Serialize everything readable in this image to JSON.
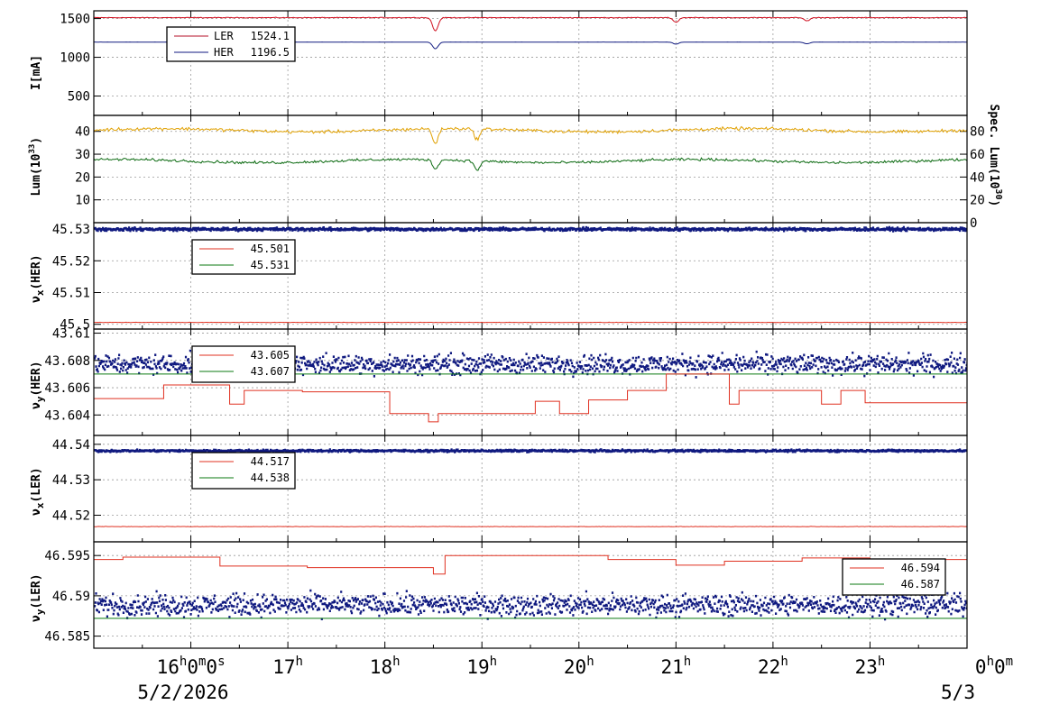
{
  "chart_data": {
    "type": "line",
    "x_axis": {
      "ticks": [
        {
          "x": 16,
          "label": "16",
          "sup": "h",
          "extra": "0",
          "extra_sup": "m",
          "extra2": "0",
          "extra2_sup": "s"
        },
        {
          "x": 17,
          "label": "17",
          "sup": "h"
        },
        {
          "x": 18,
          "label": "18",
          "sup": "h"
        },
        {
          "x": 19,
          "label": "19",
          "sup": "h"
        },
        {
          "x": 20,
          "label": "20",
          "sup": "h"
        },
        {
          "x": 21,
          "label": "21",
          "sup": "h"
        },
        {
          "x": 22,
          "label": "22",
          "sup": "h"
        },
        {
          "x": 23,
          "label": "23",
          "sup": "h"
        },
        {
          "x": 24,
          "label": "0",
          "sup": "h",
          "extra": "0",
          "extra_sup": "m"
        }
      ],
      "date_left": "5/2/2026",
      "date_right": "5/3",
      "range_hours": [
        15.0,
        24.0
      ]
    },
    "panels": [
      {
        "id": "current",
        "ylabel": "I[mA]",
        "ylim": [
          250,
          1600
        ],
        "yticks": [
          500,
          1000,
          1500
        ],
        "ytick_labels": [
          "500",
          "1000",
          "1500"
        ],
        "grid": true,
        "legend": [
          {
            "name": "LER",
            "value": "1524.1",
            "color": "#b4102a"
          },
          {
            "name": "HER",
            "value": "1196.5",
            "color": "#101a80"
          }
        ],
        "series": [
          {
            "name": "LER",
            "color": "#d01020",
            "base": 1512,
            "noise": 4,
            "dips": [
              {
                "x": 18.52,
                "y": 1340
              },
              {
                "x": 21.0,
                "y": 1450
              },
              {
                "x": 22.35,
                "y": 1470
              }
            ]
          },
          {
            "name": "HER",
            "color": "#101a80",
            "base": 1196,
            "noise": 1,
            "dips": [
              {
                "x": 18.52,
                "y": 1110
              },
              {
                "x": 21.0,
                "y": 1170
              },
              {
                "x": 22.35,
                "y": 1175
              }
            ]
          }
        ]
      },
      {
        "id": "luminosity",
        "ylabel": "Lum(10",
        "ylabel_sup": "33",
        "ylabel_tail": ")",
        "ylim": [
          0,
          47
        ],
        "yticks": [
          10,
          20,
          30,
          40
        ],
        "ytick_labels": [
          "10",
          "20",
          "30",
          "40"
        ],
        "right_axis": {
          "label": "Spec. Lum(10",
          "label_sup": "30",
          "label_tail": ")",
          "ylim": [
            0,
            94
          ],
          "ticks": [
            0,
            20,
            40,
            60,
            80
          ],
          "tick_labels": [
            "0",
            "20",
            "40",
            "60",
            "80"
          ]
        },
        "grid": true,
        "series": [
          {
            "name": "",
            "color": "#e0a000",
            "base": 40.5,
            "noise": 0.6,
            "dips": [
              {
                "x": 18.52,
                "y": 34
              },
              {
                "x": 18.95,
                "y": 36
              }
            ]
          },
          {
            "name": "",
            "color": "#0b6a10",
            "base": 27,
            "noise": 0.5,
            "dips": [
              {
                "x": 18.52,
                "y": 23
              },
              {
                "x": 18.95,
                "y": 23
              }
            ]
          }
        ]
      },
      {
        "id": "nux_her",
        "ylabel": "ν",
        "ylabel_sub": "x",
        "ylabel_tail": "(HER)",
        "ylim": [
          45.4985,
          45.532
        ],
        "yticks": [
          45.5,
          45.51,
          45.52,
          45.53
        ],
        "ytick_labels": [
          "45.5",
          "45.51",
          "45.52",
          "45.53"
        ],
        "grid": true,
        "legend": [
          {
            "name": "",
            "value": "45.501",
            "color": "#e03020"
          },
          {
            "name": "",
            "value": "45.531",
            "color": "#0b7a10"
          }
        ],
        "series": [
          {
            "name": "",
            "color": "#101a80",
            "style": "scatter",
            "base": 45.5303,
            "noise": 0.0004,
            "width": 3
          },
          {
            "name": "",
            "color": "#e03020",
            "base": 45.5006,
            "noise": 5e-05
          }
        ]
      },
      {
        "id": "nuy_her",
        "ylabel": "ν",
        "ylabel_sub": "y",
        "ylabel_tail": "(HER)",
        "ylim": [
          43.6025,
          43.6103
        ],
        "yticks": [
          43.604,
          43.606,
          43.608,
          43.61
        ],
        "ytick_labels": [
          "43.604",
          "43.606",
          "43.608",
          "43.61"
        ],
        "grid": true,
        "legend": [
          {
            "name": "",
            "value": "43.605",
            "color": "#e03020"
          },
          {
            "name": "",
            "value": "43.607",
            "color": "#0b7a10"
          }
        ],
        "series": [
          {
            "name": "",
            "color": "#101a80",
            "style": "scatter",
            "base": 43.6078,
            "noise": 0.0006,
            "width": 3
          },
          {
            "name": "",
            "color": "#0b7a10",
            "base": 43.607,
            "noise": 0.0
          },
          {
            "name": "",
            "color": "#e03020",
            "style": "step",
            "steps": [
              [
                15.0,
                43.6052
              ],
              [
                15.72,
                43.6062
              ],
              [
                16.4,
                43.6048
              ],
              [
                16.55,
                43.6058
              ],
              [
                17.15,
                43.6057
              ],
              [
                18.05,
                43.6041
              ],
              [
                18.45,
                43.6035
              ],
              [
                18.55,
                43.6041
              ],
              [
                19.55,
                43.605
              ],
              [
                19.8,
                43.6041
              ],
              [
                20.1,
                43.6051
              ],
              [
                20.5,
                43.6058
              ],
              [
                20.9,
                43.607
              ],
              [
                21.55,
                43.6048
              ],
              [
                21.65,
                43.6058
              ],
              [
                22.5,
                43.6048
              ],
              [
                22.7,
                43.6058
              ],
              [
                22.95,
                43.6049
              ],
              [
                24.0,
                43.6049
              ]
            ]
          }
        ]
      },
      {
        "id": "nux_ler",
        "ylabel": "ν",
        "ylabel_sub": "x",
        "ylabel_tail": "(LER)",
        "ylim": [
          44.5125,
          44.5425
        ],
        "yticks": [
          44.52,
          44.53,
          44.54
        ],
        "ytick_labels": [
          "44.52",
          "44.53",
          "44.54"
        ],
        "grid": true,
        "legend": [
          {
            "name": "",
            "value": "44.517",
            "color": "#e03020"
          },
          {
            "name": "",
            "value": "44.538",
            "color": "#0b7a10"
          }
        ],
        "series": [
          {
            "name": "",
            "color": "#101a80",
            "style": "scatter",
            "base": 44.5385,
            "noise": 0.00025,
            "width": 3
          },
          {
            "name": "",
            "color": "#e03020",
            "base": 44.5168,
            "noise": 5e-05
          }
        ]
      },
      {
        "id": "nuy_ler",
        "ylabel": "ν",
        "ylabel_sub": "y",
        "ylabel_tail": "(LER)",
        "ylim": [
          46.5835,
          46.5967
        ],
        "yticks": [
          46.585,
          46.59,
          46.595
        ],
        "ytick_labels": [
          "46.585",
          "46.59",
          "46.595"
        ],
        "grid": true,
        "legend": [
          {
            "name": "",
            "value": "46.594",
            "color": "#e03020"
          },
          {
            "name": "",
            "value": "46.587",
            "color": "#0b7a10"
          }
        ],
        "series": [
          {
            "name": "",
            "color": "#101a80",
            "style": "scatter",
            "base": 46.589,
            "noise": 0.0011,
            "width": 3
          },
          {
            "name": "",
            "color": "#0b7a10",
            "base": 46.5872,
            "noise": 0.0
          },
          {
            "name": "",
            "color": "#e03020",
            "style": "step",
            "steps": [
              [
                15.0,
                46.5945
              ],
              [
                15.3,
                46.5948
              ],
              [
                16.3,
                46.5937
              ],
              [
                17.2,
                46.5935
              ],
              [
                18.5,
                46.5927
              ],
              [
                18.62,
                46.595
              ],
              [
                20.3,
                46.5945
              ],
              [
                21.0,
                46.5938
              ],
              [
                21.5,
                46.5943
              ],
              [
                22.3,
                46.5947
              ],
              [
                23.0,
                46.5945
              ],
              [
                24.0,
                46.5946
              ]
            ]
          }
        ]
      }
    ]
  }
}
